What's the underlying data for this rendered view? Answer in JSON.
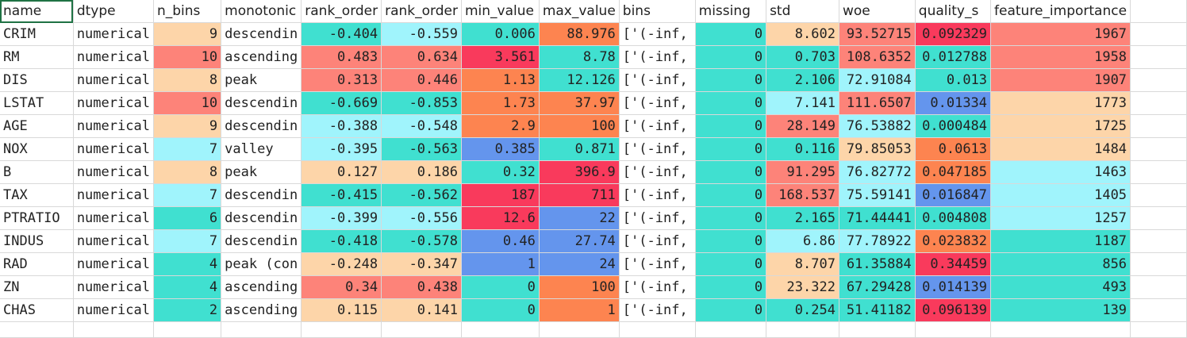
{
  "columns": [
    "name",
    "dtype",
    "n_bins",
    "monotonic",
    "rank_order",
    "rank_order",
    "min_value",
    "max_value",
    "bins",
    "missing",
    "std",
    "woe",
    "quality_s",
    "feature_importance"
  ],
  "colors": {
    "teal": "#40e0d0",
    "lightcyan": "#a0f4fc",
    "peach": "#fdd5a9",
    "salmon": "#fd8379",
    "orange": "#fd8450",
    "crimson": "#f93a5c",
    "blue": "#6495ed",
    "white": "#ffffff"
  },
  "rows": [
    {
      "name": "CRIM",
      "dtype": "numerical",
      "n_bins": "9",
      "monotonic": "descendin",
      "rank_order_1": "-0.404",
      "rank_order_2": "-0.559",
      "min_value": "0.006",
      "max_value": "88.976",
      "bins": "['(-inf,",
      "missing": "0",
      "std": "8.602",
      "woe": "93.52715",
      "quality_s": "0.092329",
      "feature_importance": "1967"
    },
    {
      "name": "RM",
      "dtype": "numerical",
      "n_bins": "10",
      "monotonic": "ascending",
      "rank_order_1": "0.483",
      "rank_order_2": "0.634",
      "min_value": "3.561",
      "max_value": "8.78",
      "bins": "['(-inf,",
      "missing": "0",
      "std": "0.703",
      "woe": "108.6352",
      "quality_s": "0.012788",
      "feature_importance": "1958"
    },
    {
      "name": "DIS",
      "dtype": "numerical",
      "n_bins": "8",
      "monotonic": "peak",
      "rank_order_1": "0.313",
      "rank_order_2": "0.446",
      "min_value": "1.13",
      "max_value": "12.126",
      "bins": "['(-inf,",
      "missing": "0",
      "std": "2.106",
      "woe": "72.91084",
      "quality_s": "0.013",
      "feature_importance": "1907"
    },
    {
      "name": "LSTAT",
      "dtype": "numerical",
      "n_bins": "10",
      "monotonic": "descendin",
      "rank_order_1": "-0.669",
      "rank_order_2": "-0.853",
      "min_value": "1.73",
      "max_value": "37.97",
      "bins": "['(-inf,",
      "missing": "0",
      "std": "7.141",
      "woe": "111.6507",
      "quality_s": "0.01334",
      "feature_importance": "1773"
    },
    {
      "name": "AGE",
      "dtype": "numerical",
      "n_bins": "9",
      "monotonic": "descendin",
      "rank_order_1": "-0.388",
      "rank_order_2": "-0.548",
      "min_value": "2.9",
      "max_value": "100",
      "bins": "['(-inf,",
      "missing": "0",
      "std": "28.149",
      "woe": "76.53882",
      "quality_s": "0.000484",
      "feature_importance": "1725"
    },
    {
      "name": "NOX",
      "dtype": "numerical",
      "n_bins": "7",
      "monotonic": "valley",
      "rank_order_1": "-0.395",
      "rank_order_2": "-0.563",
      "min_value": "0.385",
      "max_value": "0.871",
      "bins": "['(-inf,",
      "missing": "0",
      "std": "0.116",
      "woe": "79.85053",
      "quality_s": "0.0613",
      "feature_importance": "1484"
    },
    {
      "name": "B",
      "dtype": "numerical",
      "n_bins": "8",
      "monotonic": "peak",
      "rank_order_1": "0.127",
      "rank_order_2": "0.186",
      "min_value": "0.32",
      "max_value": "396.9",
      "bins": "['(-inf,",
      "missing": "0",
      "std": "91.295",
      "woe": "76.82772",
      "quality_s": "0.047185",
      "feature_importance": "1463"
    },
    {
      "name": "TAX",
      "dtype": "numerical",
      "n_bins": "7",
      "monotonic": "descendin",
      "rank_order_1": "-0.415",
      "rank_order_2": "-0.562",
      "min_value": "187",
      "max_value": "711",
      "bins": "['(-inf,",
      "missing": "0",
      "std": "168.537",
      "woe": "75.59141",
      "quality_s": "0.016847",
      "feature_importance": "1405"
    },
    {
      "name": "PTRATIO",
      "dtype": "numerical",
      "n_bins": "6",
      "monotonic": "descendin",
      "rank_order_1": "-0.399",
      "rank_order_2": "-0.556",
      "min_value": "12.6",
      "max_value": "22",
      "bins": "['(-inf,",
      "missing": "0",
      "std": "2.165",
      "woe": "71.44441",
      "quality_s": "0.004808",
      "feature_importance": "1257"
    },
    {
      "name": "INDUS",
      "dtype": "numerical",
      "n_bins": "7",
      "monotonic": "descendin",
      "rank_order_1": "-0.418",
      "rank_order_2": "-0.578",
      "min_value": "0.46",
      "max_value": "27.74",
      "bins": "['(-inf,",
      "missing": "0",
      "std": "6.86",
      "woe": "77.78922",
      "quality_s": "0.023832",
      "feature_importance": "1187"
    },
    {
      "name": "RAD",
      "dtype": "numerical",
      "n_bins": "4",
      "monotonic": "peak (con",
      "rank_order_1": "-0.248",
      "rank_order_2": "-0.347",
      "min_value": "1",
      "max_value": "24",
      "bins": "['(-inf,",
      "missing": "0",
      "std": "8.707",
      "woe": "61.35884",
      "quality_s": "0.34459",
      "feature_importance": "856"
    },
    {
      "name": "ZN",
      "dtype": "numerical",
      "n_bins": "4",
      "monotonic": "ascending",
      "rank_order_1": "0.34",
      "rank_order_2": "0.438",
      "min_value": "0",
      "max_value": "100",
      "bins": "['(-inf,",
      "missing": "0",
      "std": "23.322",
      "woe": "67.29428",
      "quality_s": "0.014139",
      "feature_importance": "493"
    },
    {
      "name": "CHAS",
      "dtype": "numerical",
      "n_bins": "2",
      "monotonic": "ascending",
      "rank_order_1": "0.115",
      "rank_order_2": "0.141",
      "min_value": "0",
      "max_value": "1",
      "bins": "['(-inf,",
      "missing": "0",
      "std": "0.254",
      "woe": "51.41182",
      "quality_s": "0.096139",
      "feature_importance": "139"
    }
  ],
  "cell_colors": [
    {
      "n_bins": "peach",
      "rank_order_1": "teal",
      "rank_order_2": "lightcyan",
      "min_value": "teal",
      "max_value": "orange",
      "missing": "teal",
      "std": "peach",
      "woe": "salmon",
      "quality_s": "crimson",
      "feature_importance": "salmon"
    },
    {
      "n_bins": "salmon",
      "rank_order_1": "salmon",
      "rank_order_2": "salmon",
      "min_value": "crimson",
      "max_value": "teal",
      "missing": "teal",
      "std": "teal",
      "woe": "salmon",
      "quality_s": "teal",
      "feature_importance": "salmon"
    },
    {
      "n_bins": "peach",
      "rank_order_1": "salmon",
      "rank_order_2": "salmon",
      "min_value": "orange",
      "max_value": "teal",
      "missing": "teal",
      "std": "teal",
      "woe": "lightcyan",
      "quality_s": "teal",
      "feature_importance": "salmon"
    },
    {
      "n_bins": "salmon",
      "rank_order_1": "teal",
      "rank_order_2": "teal",
      "min_value": "orange",
      "max_value": "orange",
      "missing": "teal",
      "std": "lightcyan",
      "woe": "salmon",
      "quality_s": "blue",
      "feature_importance": "peach"
    },
    {
      "n_bins": "peach",
      "rank_order_1": "lightcyan",
      "rank_order_2": "lightcyan",
      "min_value": "orange",
      "max_value": "orange",
      "missing": "teal",
      "std": "salmon",
      "woe": "lightcyan",
      "quality_s": "teal",
      "feature_importance": "peach"
    },
    {
      "n_bins": "lightcyan",
      "rank_order_1": "lightcyan",
      "rank_order_2": "teal",
      "min_value": "blue",
      "max_value": "teal",
      "missing": "teal",
      "std": "teal",
      "woe": "peach",
      "quality_s": "orange",
      "feature_importance": "peach"
    },
    {
      "n_bins": "peach",
      "rank_order_1": "peach",
      "rank_order_2": "peach",
      "min_value": "teal",
      "max_value": "crimson",
      "missing": "teal",
      "std": "salmon",
      "woe": "lightcyan",
      "quality_s": "orange",
      "feature_importance": "lightcyan"
    },
    {
      "n_bins": "lightcyan",
      "rank_order_1": "teal",
      "rank_order_2": "teal",
      "min_value": "crimson",
      "max_value": "crimson",
      "missing": "teal",
      "std": "salmon",
      "woe": "lightcyan",
      "quality_s": "blue",
      "feature_importance": "lightcyan"
    },
    {
      "n_bins": "teal",
      "rank_order_1": "lightcyan",
      "rank_order_2": "lightcyan",
      "min_value": "crimson",
      "max_value": "blue",
      "missing": "teal",
      "std": "teal",
      "woe": "teal",
      "quality_s": "teal",
      "feature_importance": "lightcyan"
    },
    {
      "n_bins": "lightcyan",
      "rank_order_1": "teal",
      "rank_order_2": "teal",
      "min_value": "blue",
      "max_value": "blue",
      "missing": "teal",
      "std": "lightcyan",
      "woe": "lightcyan",
      "quality_s": "orange",
      "feature_importance": "teal"
    },
    {
      "n_bins": "teal",
      "rank_order_1": "peach",
      "rank_order_2": "peach",
      "min_value": "blue",
      "max_value": "blue",
      "missing": "teal",
      "std": "peach",
      "woe": "teal",
      "quality_s": "crimson",
      "feature_importance": "teal"
    },
    {
      "n_bins": "teal",
      "rank_order_1": "salmon",
      "rank_order_2": "salmon",
      "min_value": "teal",
      "max_value": "orange",
      "missing": "teal",
      "std": "peach",
      "woe": "teal",
      "quality_s": "blue",
      "feature_importance": "teal"
    },
    {
      "n_bins": "teal",
      "rank_order_1": "peach",
      "rank_order_2": "peach",
      "min_value": "teal",
      "max_value": "orange",
      "missing": "teal",
      "std": "teal",
      "woe": "teal",
      "quality_s": "crimson",
      "feature_importance": "teal"
    }
  ]
}
